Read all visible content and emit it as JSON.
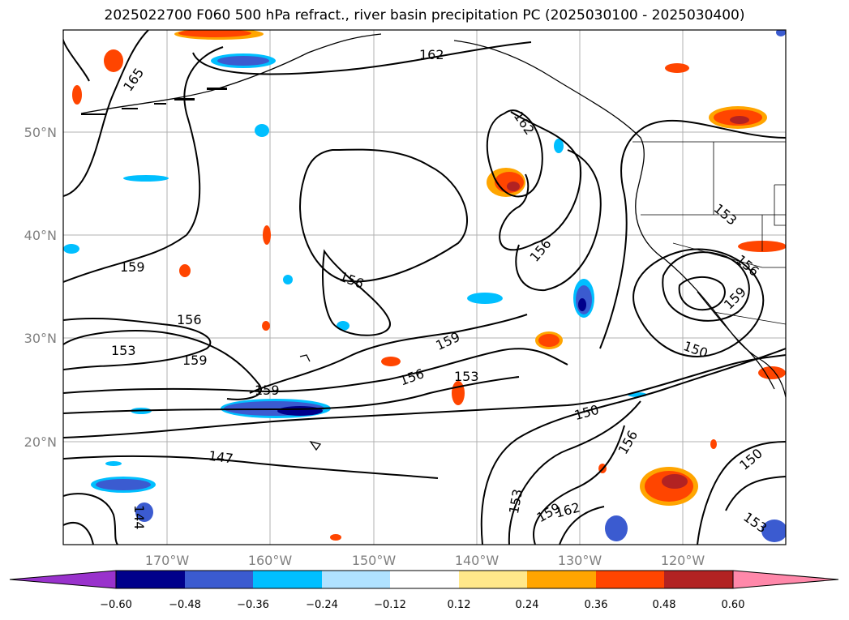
{
  "title": "2025022700 F060 500 hPa refract., river basin precipitation PC (2025030100 - 2025030400)",
  "latitude_labels": [
    "50°N",
    "40°N",
    "30°N",
    "20°N"
  ],
  "longitude_labels": [
    "170°W",
    "160°W",
    "150°W",
    "140°W",
    "130°W",
    "120°W"
  ],
  "colorbar": {
    "ticks": [
      "−0.60",
      "−0.48",
      "−0.36",
      "−0.24",
      "−0.12",
      "0.12",
      "0.24",
      "0.36",
      "0.48",
      "0.60"
    ],
    "colors": {
      "under": "#9932cc",
      "b1": "#00008b",
      "b2": "#3b5bd0",
      "b3": "#00bfff",
      "b4": "#b0e2ff",
      "b5": "#ffffff",
      "b6": "#ffe88a",
      "b7": "#ffa500",
      "b8": "#ff4500",
      "b9": "#b22222",
      "over": "#ff88aa"
    }
  },
  "contour_labels": [
    {
      "text": "165"
    },
    {
      "text": "162"
    },
    {
      "text": "162"
    },
    {
      "text": "159"
    },
    {
      "text": "156"
    },
    {
      "text": "156"
    },
    {
      "text": "153"
    },
    {
      "text": "159"
    },
    {
      "text": "159"
    },
    {
      "text": "159"
    },
    {
      "text": "156"
    },
    {
      "text": "153"
    },
    {
      "text": "156"
    },
    {
      "text": "153"
    },
    {
      "text": "156"
    },
    {
      "text": "159"
    },
    {
      "text": "150"
    },
    {
      "text": "150"
    },
    {
      "text": "156"
    },
    {
      "text": "147"
    },
    {
      "text": "144"
    },
    {
      "text": "153"
    },
    {
      "text": "159"
    },
    {
      "text": "162"
    },
    {
      "text": "150"
    },
    {
      "text": "153"
    }
  ]
}
